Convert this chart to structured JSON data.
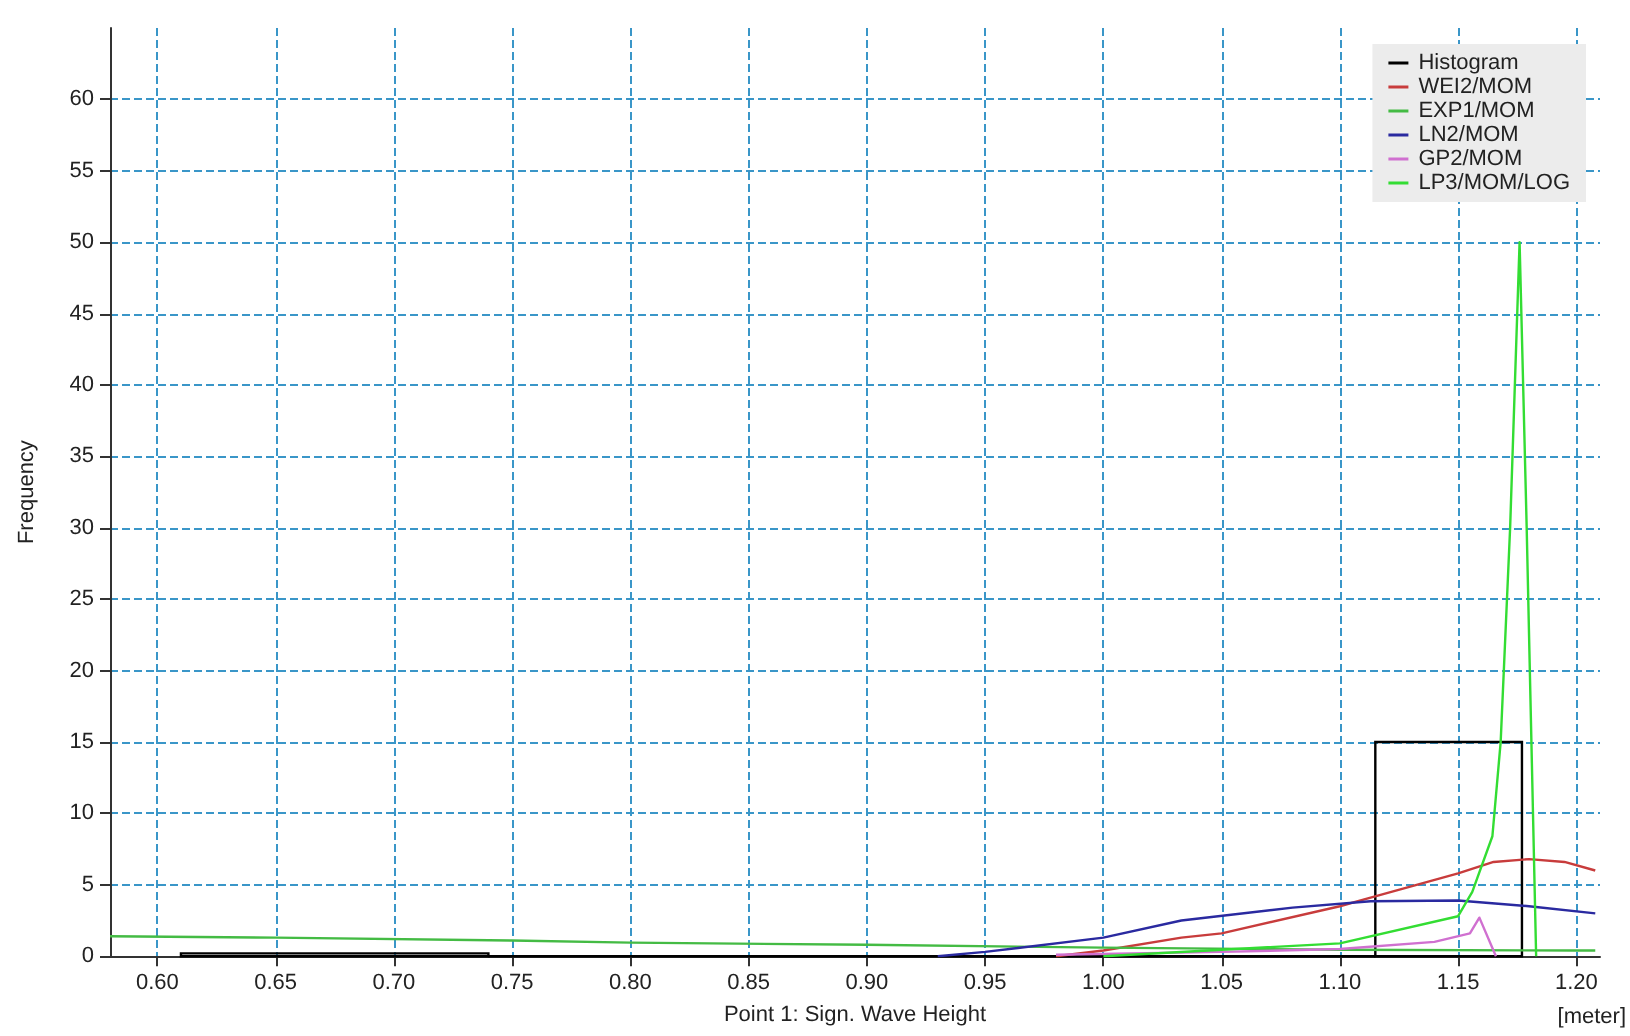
{
  "chart_data": {
    "type": "line",
    "xlabel": "Point 1: Sign. Wave Height",
    "ylabel": "Frequency",
    "annotations": [
      "[meter]"
    ],
    "xlim": [
      0.58,
      1.21
    ],
    "ylim": [
      0,
      65
    ],
    "xticks": [
      {
        "value": 0.6,
        "label": "0.60"
      },
      {
        "value": 0.65,
        "label": "0.65"
      },
      {
        "value": 0.7,
        "label": "0.70"
      },
      {
        "value": 0.75,
        "label": "0.75"
      },
      {
        "value": 0.8,
        "label": "0.80"
      },
      {
        "value": 0.85,
        "label": "0.85"
      },
      {
        "value": 0.9,
        "label": "0.90"
      },
      {
        "value": 0.95,
        "label": "0.95"
      },
      {
        "value": 1.0,
        "label": "1.00"
      },
      {
        "value": 1.05,
        "label": "1.05"
      },
      {
        "value": 1.1,
        "label": "1.10"
      },
      {
        "value": 1.15,
        "label": "1.15"
      },
      {
        "value": 1.2,
        "label": "1.20"
      }
    ],
    "yticks": [
      0,
      5,
      10,
      15,
      20,
      25,
      30,
      35,
      40,
      45,
      50,
      55,
      60
    ],
    "grid": true,
    "legend": "top right",
    "marker": "none",
    "line_style": "solid",
    "series": [
      {
        "name": "Histogram",
        "type": "histogram",
        "color": "#000000",
        "bins": [
          0.61,
          0.74,
          1.115,
          1.177
        ],
        "values": [
          0.2,
          0,
          15
        ]
      },
      {
        "name": "WEI2/MOM",
        "color": "#c83c3c",
        "x": [
          0.98,
          1.0,
          1.033,
          1.05,
          1.1,
          1.113,
          1.15,
          1.165,
          1.18,
          1.195,
          1.208
        ],
        "values": [
          0,
          0.4,
          1.3,
          1.6,
          3.5,
          4.1,
          5.8,
          6.6,
          6.8,
          6.6,
          6.0
        ]
      },
      {
        "name": "EXP1/MOM",
        "color": "#44bb44",
        "x": [
          0.58,
          0.65,
          0.75,
          0.8,
          0.9,
          1.0,
          1.1,
          1.2,
          1.208
        ],
        "values": [
          1.4,
          1.3,
          1.1,
          0.95,
          0.8,
          0.6,
          0.45,
          0.4,
          0.4
        ]
      },
      {
        "name": "LN2/MOM",
        "color": "#2a2aa0",
        "x": [
          0.93,
          0.95,
          1.0,
          1.033,
          1.08,
          1.113,
          1.15,
          1.18,
          1.208
        ],
        "values": [
          0,
          0.3,
          1.3,
          2.5,
          3.4,
          3.85,
          3.9,
          3.5,
          3.0
        ]
      },
      {
        "name": "GP2/MOM",
        "color": "#d070d0",
        "x": [
          0.98,
          1.05,
          1.1,
          1.14,
          1.155,
          1.159,
          1.166
        ],
        "values": [
          0.1,
          0.3,
          0.5,
          1.0,
          1.6,
          2.7,
          0
        ]
      },
      {
        "name": "LP3/MOM/LOG",
        "color": "#33dd33",
        "x": [
          1.0,
          1.1,
          1.15,
          1.156,
          1.1645,
          1.168,
          1.172,
          1.176,
          1.179,
          1.183
        ],
        "values": [
          0,
          0.9,
          2.8,
          4.5,
          8.4,
          15,
          30,
          50,
          30,
          0
        ]
      }
    ]
  }
}
